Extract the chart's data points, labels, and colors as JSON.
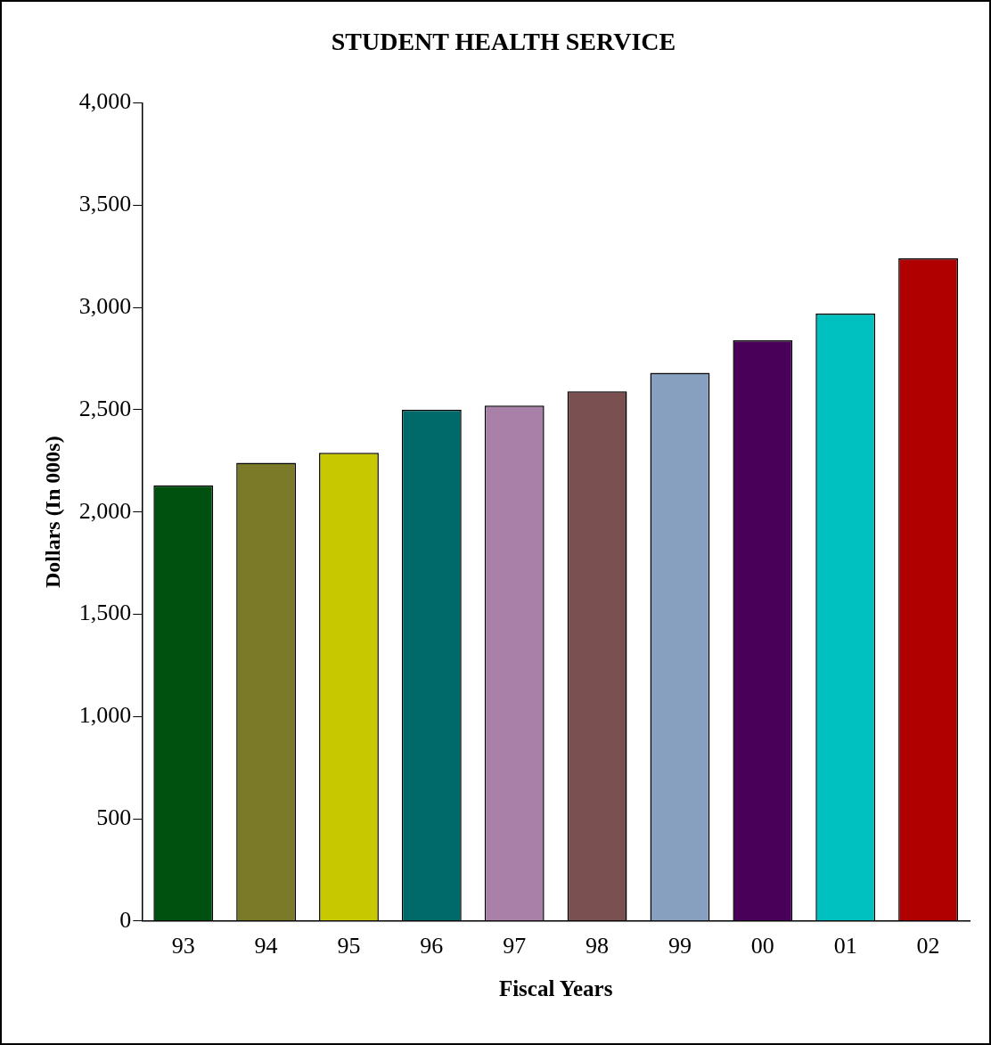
{
  "chart_data": {
    "type": "bar",
    "title": "STUDENT HEALTH SERVICE",
    "xlabel": "Fiscal Years",
    "ylabel": "Dollars (In 000s)",
    "categories": [
      "93",
      "94",
      "95",
      "96",
      "97",
      "98",
      "99",
      "00",
      "01",
      "02"
    ],
    "values": [
      2130,
      2240,
      2290,
      2500,
      2520,
      2590,
      2680,
      2840,
      2970,
      3240
    ],
    "colors": [
      "#005010",
      "#7a7a28",
      "#c8c800",
      "#006a6a",
      "#a880a8",
      "#7a5050",
      "#88a0c0",
      "#480058",
      "#00c0c0",
      "#b00000"
    ],
    "ylim": [
      0,
      4000
    ],
    "yticks": [
      {
        "value": 0,
        "label": "0"
      },
      {
        "value": 500,
        "label": "500"
      },
      {
        "value": 1000,
        "label": "1,000"
      },
      {
        "value": 1500,
        "label": "1,500"
      },
      {
        "value": 2000,
        "label": "2,000"
      },
      {
        "value": 2500,
        "label": "2,500"
      },
      {
        "value": 3000,
        "label": "3,000"
      },
      {
        "value": 3500,
        "label": "3,500"
      },
      {
        "value": 4000,
        "label": "4,000"
      }
    ],
    "grid": false,
    "legend": false
  }
}
